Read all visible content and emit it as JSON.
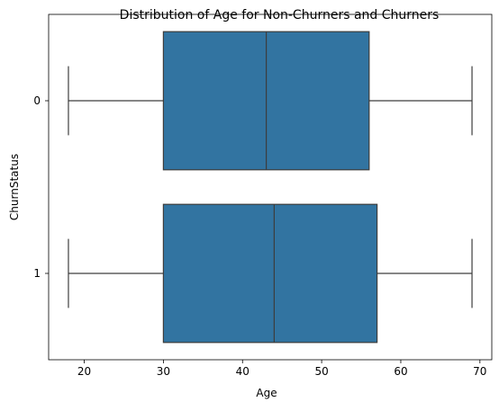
{
  "chart_data": {
    "type": "boxplot",
    "orientation": "horizontal",
    "title": "Distribution of Age for Non-Churners and Churners",
    "xlabel": "Age",
    "ylabel": "ChurnStatus",
    "xlim": [
      15.5,
      71.5
    ],
    "x_ticks": [
      20,
      30,
      40,
      50,
      60,
      70
    ],
    "categories": [
      "0",
      "1"
    ],
    "grid": false,
    "box_color": "#3274a1",
    "line_color": "#3d3d3d",
    "boxes": [
      {
        "category": "0",
        "whisker_low": 18,
        "q1": 30,
        "median": 43,
        "q3": 56,
        "whisker_high": 69
      },
      {
        "category": "1",
        "whisker_low": 18,
        "q1": 30,
        "median": 44,
        "q3": 57,
        "whisker_high": 69
      }
    ]
  }
}
